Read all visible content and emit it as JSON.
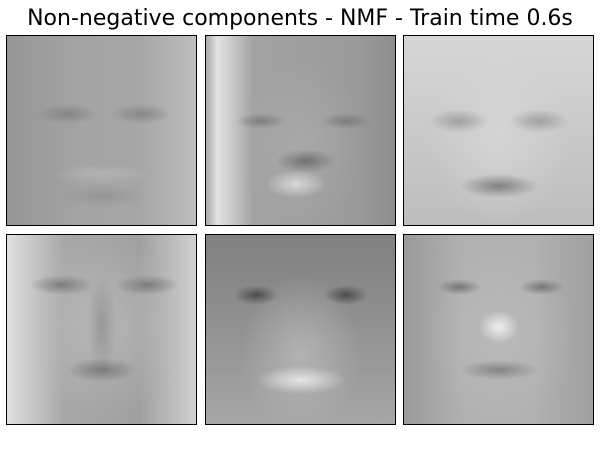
{
  "figure": {
    "title": "Non-negative components - NMF - Train time 0.6s",
    "panels": [
      {
        "component": 1,
        "colormap": "gray"
      },
      {
        "component": 2,
        "colormap": "gray"
      },
      {
        "component": 3,
        "colormap": "gray"
      },
      {
        "component": 4,
        "colormap": "gray"
      },
      {
        "component": 5,
        "colormap": "gray"
      },
      {
        "component": 6,
        "colormap": "gray"
      }
    ]
  }
}
